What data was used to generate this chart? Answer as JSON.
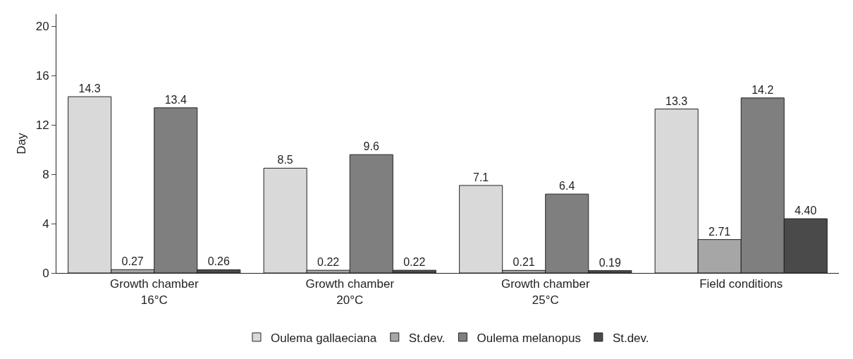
{
  "chart_data": {
    "type": "bar",
    "ylabel": "Day",
    "categories": [
      "Growth chamber\n16°C",
      "Growth chamber\n20°C",
      "Growth chamber\n25°C",
      "Field conditions"
    ],
    "series": [
      {
        "name": "Oulema gallaeciana",
        "color": "#d9d9d9",
        "values": [
          14.3,
          8.5,
          7.1,
          13.3
        ],
        "value_labels": [
          "14.3",
          "8.5",
          "7.1",
          "13.3"
        ]
      },
      {
        "name": "St.dev.",
        "color": "#a6a6a6",
        "values": [
          0.27,
          0.22,
          0.21,
          2.71
        ],
        "value_labels": [
          "0.27",
          "0.22",
          "0.21",
          "2.71"
        ]
      },
      {
        "name": "Oulema melanopus",
        "color": "#7f7f7f",
        "values": [
          13.4,
          9.6,
          6.4,
          14.2
        ],
        "value_labels": [
          "13.4",
          "9.6",
          "6.4",
          "14.2"
        ]
      },
      {
        "name": "St.dev.",
        "color": "#4a4a4a",
        "values": [
          0.26,
          0.22,
          0.19,
          4.4
        ],
        "value_labels": [
          "0.26",
          "0.22",
          "0.19",
          "4.40"
        ]
      }
    ],
    "ylim": [
      0,
      21
    ],
    "yticks": [
      0,
      4,
      8,
      12,
      16,
      20
    ],
    "grid": false,
    "legend": "bottom"
  }
}
